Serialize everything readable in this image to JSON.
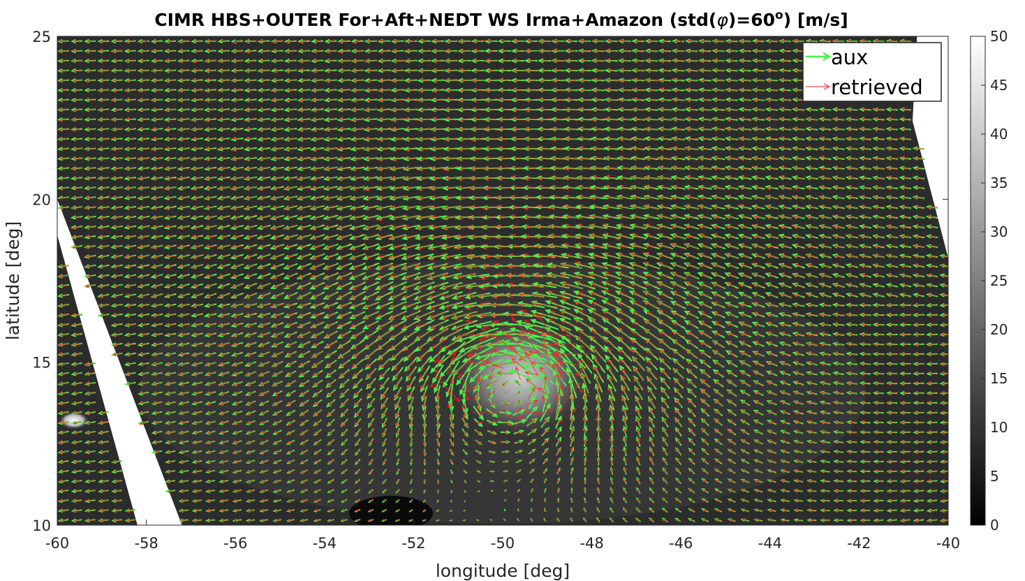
{
  "chart_data": {
    "type": "quiver",
    "title": "CIMR HBS+OUTER For+Aft+NEDT WS Irma+Amazon (std(",
    "title_symbol": "φ",
    "title_mid": ")=60",
    "title_sup": "o",
    "title_end": ") [m/s]",
    "xlabel": "longitude [deg]",
    "ylabel": "latitude [deg]",
    "xlim": [
      -60,
      -40
    ],
    "ylim": [
      10,
      25
    ],
    "xticks": [
      "-60",
      "-58",
      "-56",
      "-54",
      "-52",
      "-50",
      "-48",
      "-46",
      "-44",
      "-42",
      "-40"
    ],
    "yticks": [
      "10",
      "15",
      "20",
      "25"
    ],
    "colorbar": {
      "ticks": [
        "0",
        "5",
        "10",
        "15",
        "20",
        "25",
        "30",
        "35",
        "40",
        "45",
        "50"
      ],
      "range": [
        0,
        50
      ],
      "colormap": "gray"
    },
    "legend": {
      "placement": "top-right",
      "entries": [
        {
          "label": "aux",
          "color": "#4cf04c"
        },
        {
          "label": "retrieved",
          "color": "#ff2020"
        }
      ]
    },
    "series": [
      {
        "name": "aux",
        "color": "#4cf04c"
      },
      {
        "name": "retrieved",
        "color": "#ff2020"
      }
    ],
    "background": "wind speed [m/s]",
    "cyclone_center": {
      "lon": -49.8,
      "lat": 14.6
    },
    "swath_gaps": [
      {
        "polygon": [
          [
            -60,
            20
          ],
          [
            -60,
            18.9
          ],
          [
            -58.2,
            10
          ],
          [
            -57.2,
            10
          ]
        ]
      },
      {
        "polygon": [
          [
            -40.7,
            25
          ],
          [
            -40,
            25
          ],
          [
            -40,
            18.2
          ],
          [
            -40.8,
            22.4
          ]
        ]
      }
    ]
  }
}
